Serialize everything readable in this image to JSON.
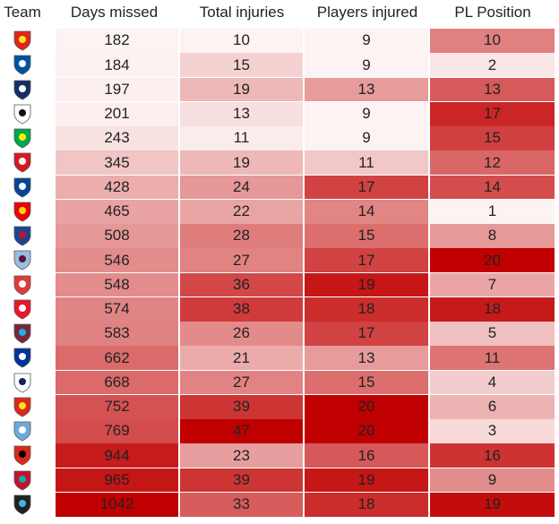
{
  "chart_data": {
    "type": "table",
    "headers": [
      "Team",
      "Days missed",
      "Total injuries",
      "Players injured",
      "PL Position"
    ],
    "teams": [
      {
        "badge": "watford-badge-icon",
        "colors": [
          "#e2241a",
          "#fbe122"
        ]
      },
      {
        "badge": "leicester-badge-icon",
        "colors": [
          "#0053a0",
          "#ffffff"
        ]
      },
      {
        "badge": "west-brom-badge-icon",
        "colors": [
          "#122f67",
          "#ffffff"
        ]
      },
      {
        "badge": "swansea-badge-icon",
        "colors": [
          "#ffffff",
          "#111111"
        ]
      },
      {
        "badge": "norwich-badge-icon",
        "colors": [
          "#00a650",
          "#fff200"
        ]
      },
      {
        "badge": "southampton-badge-icon",
        "colors": [
          "#d71920",
          "#ffffff"
        ]
      },
      {
        "badge": "chelsea-badge-icon",
        "colors": [
          "#034694",
          "#ffffff"
        ]
      },
      {
        "badge": "arsenal-badge-icon",
        "colors": [
          "#ef0107",
          "#ffd700"
        ]
      },
      {
        "badge": "crystal-palace-badge-icon",
        "colors": [
          "#1b458f",
          "#c4122e"
        ]
      },
      {
        "badge": "aston-villa-badge-icon",
        "colors": [
          "#95bfe5",
          "#670e36"
        ]
      },
      {
        "badge": "stoke-badge-icon",
        "colors": [
          "#e03a3e",
          "#ffffff"
        ]
      },
      {
        "badge": "sunderland-badge-icon",
        "colors": [
          "#eb172b",
          "#ffffff"
        ]
      },
      {
        "badge": "west-ham-badge-icon",
        "colors": [
          "#7a263a",
          "#1bb1e7"
        ]
      },
      {
        "badge": "everton-badge-icon",
        "colors": [
          "#003399",
          "#ffffff"
        ]
      },
      {
        "badge": "tottenham-badge-icon",
        "colors": [
          "#ffffff",
          "#132257"
        ]
      },
      {
        "badge": "man-utd-badge-icon",
        "colors": [
          "#da291c",
          "#fbe122"
        ]
      },
      {
        "badge": "man-city-badge-icon",
        "colors": [
          "#6cabdd",
          "#ffffff"
        ]
      },
      {
        "badge": "bournemouth-badge-icon",
        "colors": [
          "#da291c",
          "#000000"
        ]
      },
      {
        "badge": "liverpool-badge-icon",
        "colors": [
          "#c8102e",
          "#00b2a9"
        ]
      },
      {
        "badge": "newcastle-badge-icon",
        "colors": [
          "#241f20",
          "#41b6e6"
        ]
      }
    ],
    "columns": [
      {
        "name": "Days missed",
        "values": [
          182,
          184,
          197,
          201,
          243,
          345,
          428,
          465,
          508,
          546,
          548,
          574,
          583,
          662,
          668,
          752,
          769,
          944,
          965,
          1042
        ]
      },
      {
        "name": "Total injuries",
        "values": [
          10,
          15,
          19,
          13,
          11,
          19,
          24,
          22,
          28,
          27,
          36,
          38,
          26,
          21,
          27,
          39,
          47,
          23,
          39,
          33
        ]
      },
      {
        "name": "Players injured",
        "values": [
          9,
          9,
          13,
          9,
          9,
          11,
          17,
          14,
          15,
          17,
          19,
          18,
          17,
          13,
          15,
          20,
          20,
          16,
          19,
          18
        ]
      },
      {
        "name": "PL Position",
        "values": [
          10,
          2,
          13,
          17,
          15,
          12,
          14,
          1,
          8,
          20,
          7,
          18,
          5,
          11,
          4,
          6,
          3,
          16,
          9,
          19
        ]
      }
    ],
    "color_scale": {
      "low": "#fdf3f3",
      "high": "#c00000"
    }
  }
}
